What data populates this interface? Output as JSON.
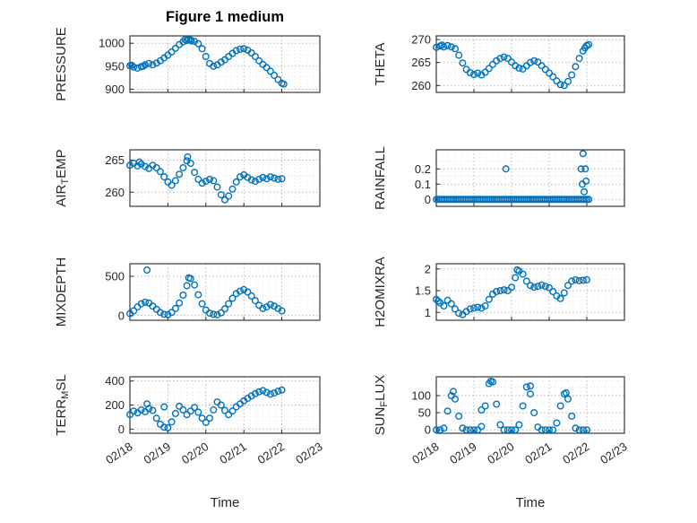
{
  "figure": {
    "title": "Figure 1 medium",
    "xlabel": "Time"
  },
  "chart_data": {
    "type": "scatter",
    "marker": "open-circle",
    "x_encoding": "days since 02/18 00:00",
    "style": {
      "marker_color": "#0072bd",
      "axis_color": "#262626",
      "grid_major_color": "#b3b3b3",
      "grid_minor_color": "#dcdcdc",
      "tick_label_color": "#262626",
      "background": "#ffffff"
    },
    "xlim": [
      0,
      5
    ],
    "x_ticks": [
      0,
      1,
      2,
      3,
      4,
      5
    ],
    "x_tick_labels": [
      "02/18",
      "02/19",
      "02/20",
      "02/21",
      "02/22",
      "02/23"
    ],
    "subplots": [
      {
        "name": "pressure",
        "ylabel": "PRESSURE",
        "row": 0,
        "col": 0,
        "ylim": [
          893,
          1016
        ],
        "yticks": [
          900,
          950,
          1000
        ],
        "ytick_labels": [
          "900",
          "950",
          "1000"
        ],
        "series": {
          "t0": 0,
          "dt": 0.1,
          "values": [
            951,
            948,
            946,
            949,
            953,
            956,
            953,
            957,
            962,
            968,
            974,
            981,
            989,
            997,
            1003,
            1006,
            1007,
            1004,
            999,
            988,
            971,
            956,
            950,
            953,
            959,
            964,
            971,
            978,
            984,
            987,
            988,
            985,
            979,
            971,
            962,
            954,
            947,
            939,
            930,
            921,
            913
          ]
        },
        "extra_points": [
          [
            1.45,
            1008
          ],
          [
            1.55,
            1008
          ],
          [
            1.62,
            1005
          ],
          [
            0.05,
            952
          ],
          [
            0.35,
            950
          ],
          [
            4.05,
            911
          ]
        ]
      },
      {
        "name": "theta",
        "ylabel": "THETA",
        "row": 0,
        "col": 1,
        "ylim": [
          258.5,
          270.8
        ],
        "yticks": [
          260,
          265,
          270
        ],
        "ytick_labels": [
          "260",
          "265",
          "270"
        ],
        "series": {
          "t0": 0,
          "dt": 0.1,
          "values": [
            268.3,
            268.6,
            268.4,
            268.7,
            268.4,
            268.0,
            266.6,
            264.9,
            263.5,
            262.8,
            262.4,
            262.7,
            262.3,
            262.9,
            263.7,
            264.6,
            265.4,
            265.9,
            266.2,
            265.9,
            265.1,
            264.3,
            263.8,
            263.6,
            264.3,
            265.0,
            265.4,
            265.1,
            264.3,
            263.5,
            262.7,
            261.9,
            261.0,
            260.2,
            260.0,
            260.9,
            262.3,
            264.1,
            265.9,
            267.5,
            268.7
          ]
        },
        "extra_points": [
          [
            4.05,
            268.9
          ],
          [
            3.95,
            268.2
          ],
          [
            0.15,
            268.8
          ]
        ]
      },
      {
        "name": "air_temp",
        "ylabel": "AIR_TEMP",
        "row": 1,
        "col": 0,
        "ylim": [
          257.8,
          266.6
        ],
        "yticks": [
          260,
          265
        ],
        "ytick_labels": [
          "260",
          "265"
        ],
        "series": {
          "t0": 0,
          "dt": 0.1,
          "values": [
            264.2,
            264.5,
            264.1,
            264.4,
            264.0,
            263.7,
            264.2,
            263.8,
            263.2,
            262.4,
            261.6,
            261.1,
            261.8,
            262.8,
            263.8,
            264.9,
            264.5,
            263.1,
            262.0,
            261.4,
            261.7,
            262.0,
            261.8,
            260.8,
            259.6,
            258.8,
            259.4,
            260.5,
            261.6,
            262.4,
            262.7,
            262.3,
            261.9,
            261.7,
            262.0,
            262.3,
            262.1,
            262.4,
            262.2,
            262.0,
            262.1
          ]
        },
        "extra_points": [
          [
            1.52,
            265.5
          ],
          [
            0.25,
            264.7
          ]
        ]
      },
      {
        "name": "rainfall",
        "ylabel": "RAINFALL",
        "row": 1,
        "col": 1,
        "ylim": [
          -0.045,
          0.325
        ],
        "yticks": [
          0,
          0.1,
          0.2
        ],
        "ytick_labels": [
          "0",
          "0.1",
          "0.2"
        ],
        "series": {
          "t0": 0,
          "dt": 0.05,
          "values": [
            0,
            0,
            0,
            0,
            0,
            0,
            0,
            0,
            0,
            0,
            0,
            0,
            0,
            0,
            0,
            0,
            0,
            0,
            0,
            0,
            0,
            0,
            0,
            0,
            0,
            0,
            0,
            0,
            0,
            0,
            0,
            0,
            0,
            0,
            0,
            0,
            0,
            0,
            0,
            0,
            0,
            0,
            0,
            0,
            0,
            0,
            0,
            0,
            0,
            0,
            0,
            0,
            0,
            0,
            0,
            0,
            0,
            0,
            0,
            0,
            0,
            0,
            0,
            0,
            0,
            0,
            0,
            0,
            0,
            0,
            0,
            0,
            0,
            0,
            0,
            0,
            0,
            0,
            0,
            0,
            0,
            0
          ]
        },
        "extra_points": [
          [
            1.85,
            0.2
          ],
          [
            3.85,
            0.2
          ],
          [
            3.88,
            0.1
          ],
          [
            3.9,
            0.3
          ],
          [
            3.93,
            0.05
          ],
          [
            3.96,
            0.2
          ],
          [
            3.98,
            0.12
          ]
        ]
      },
      {
        "name": "mixdepth",
        "ylabel": "MIXDEPTH",
        "row": 2,
        "col": 0,
        "ylim": [
          -60,
          660
        ],
        "yticks": [
          0,
          500
        ],
        "ytick_labels": [
          "0",
          "500"
        ],
        "series": {
          "t0": 0,
          "dt": 0.1,
          "values": [
            25,
            60,
            110,
            150,
            170,
            160,
            120,
            80,
            40,
            15,
            10,
            40,
            90,
            160,
            260,
            380,
            470,
            390,
            265,
            150,
            70,
            30,
            15,
            10,
            35,
            85,
            150,
            220,
            280,
            310,
            330,
            300,
            250,
            190,
            130,
            90,
            110,
            140,
            120,
            90,
            60
          ]
        },
        "extra_points": [
          [
            0.45,
            580
          ],
          [
            1.55,
            480
          ]
        ]
      },
      {
        "name": "h2omixra",
        "ylabel": "H2OMIXRA",
        "row": 2,
        "col": 1,
        "ylim": [
          0.82,
          2.12
        ],
        "yticks": [
          1,
          1.5,
          2
        ],
        "ytick_labels": [
          "1",
          "1.5",
          "2"
        ],
        "series": {
          "t0": 0,
          "dt": 0.1,
          "values": [
            1.3,
            1.22,
            1.15,
            1.28,
            1.2,
            1.08,
            0.98,
            0.95,
            1.02,
            1.08,
            1.1,
            1.12,
            1.1,
            1.15,
            1.3,
            1.42,
            1.48,
            1.5,
            1.52,
            1.5,
            1.58,
            1.8,
            1.95,
            1.88,
            1.72,
            1.62,
            1.58,
            1.6,
            1.63,
            1.6,
            1.57,
            1.48,
            1.38,
            1.32,
            1.45,
            1.62,
            1.72,
            1.75,
            1.73,
            1.74,
            1.75
          ]
        },
        "extra_points": [
          [
            2.15,
            1.98
          ],
          [
            0.05,
            1.26
          ]
        ]
      },
      {
        "name": "terr_msl",
        "ylabel": "TERR_MSL",
        "row": 3,
        "col": 0,
        "ylim": [
          -35,
          435
        ],
        "yticks": [
          0,
          200,
          400
        ],
        "ytick_labels": [
          "0",
          "200",
          "400"
        ],
        "series": {
          "t0": 0,
          "dt": 0.1,
          "values": [
            120,
            150,
            135,
            160,
            145,
            170,
            155,
            90,
            40,
            15,
            10,
            60,
            130,
            190,
            160,
            120,
            150,
            180,
            140,
            90,
            55,
            90,
            160,
            225,
            200,
            155,
            120,
            150,
            185,
            210,
            235,
            255,
            275,
            295,
            310,
            320,
            305,
            290,
            300,
            315,
            325
          ]
        },
        "extra_points": [
          [
            0.45,
            210
          ],
          [
            0.9,
            185
          ]
        ]
      },
      {
        "name": "sun_flux",
        "ylabel": "SUN_FLUX",
        "row": 3,
        "col": 1,
        "ylim": [
          -10,
          155
        ],
        "yticks": [
          0,
          50,
          100
        ],
        "ytick_labels": [
          "0",
          "50",
          "100"
        ],
        "series": {
          "t0": 0,
          "dt": 0.1,
          "values": [
            0,
            0,
            5,
            55,
            100,
            90,
            40,
            5,
            0,
            0,
            0,
            0,
            10,
            70,
            135,
            140,
            75,
            15,
            0,
            0,
            0,
            0,
            15,
            70,
            125,
            105,
            50,
            8,
            0,
            0,
            0,
            0,
            20,
            70,
            105,
            90,
            40,
            5,
            0,
            0,
            0
          ]
        },
        "extra_points": [
          [
            1.45,
            142
          ],
          [
            1.2,
            58
          ],
          [
            2.5,
            128
          ],
          [
            0.45,
            112
          ],
          [
            3.45,
            108
          ]
        ]
      }
    ]
  }
}
